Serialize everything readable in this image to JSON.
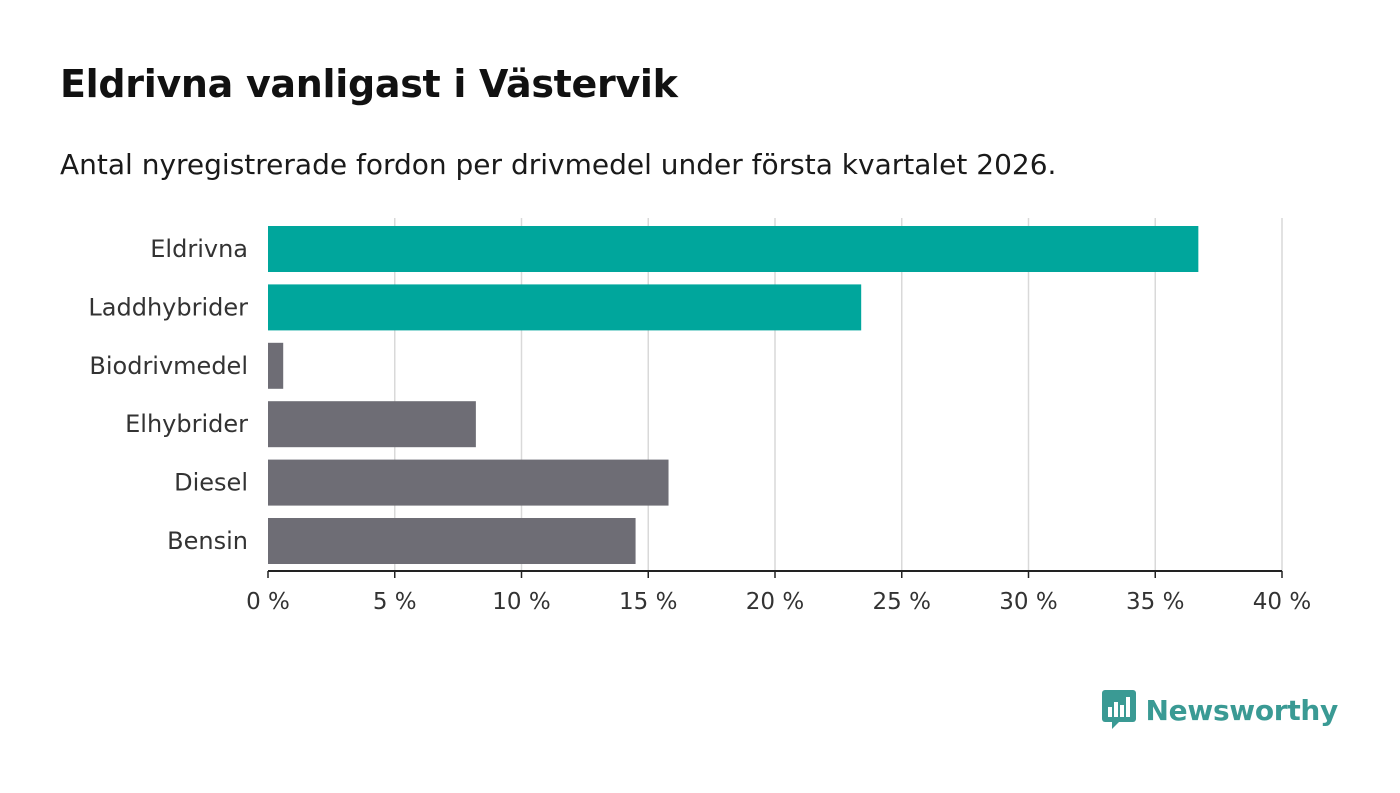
{
  "header": {
    "title": "Eldrivna vanligast i Västervik",
    "subtitle": "Antal nyregistrerade fordon per drivmedel under första kvartalet 2026."
  },
  "chart_data": {
    "type": "bar",
    "orientation": "horizontal",
    "categories": [
      "Eldrivna",
      "Laddhybrider",
      "Biodrivmedel",
      "Elhybrider",
      "Diesel",
      "Bensin"
    ],
    "values": [
      36.7,
      23.4,
      0.6,
      8.2,
      15.8,
      14.5
    ],
    "bar_colors": [
      "#00a69c",
      "#00a69c",
      "#6e6d75",
      "#6e6d75",
      "#6e6d75",
      "#6e6d75"
    ],
    "xlim": [
      0,
      40
    ],
    "xticks": [
      0,
      5,
      10,
      15,
      20,
      25,
      30,
      35,
      40
    ],
    "xtick_labels": [
      "0 %",
      "5 %",
      "10 %",
      "15 %",
      "20 %",
      "25 %",
      "30 %",
      "35 %",
      "40 %"
    ],
    "grid": true,
    "title": "Eldrivna vanligast i Västervik",
    "xlabel": "",
    "ylabel": ""
  },
  "brand": {
    "name": "Newsworthy",
    "color": "#3a9a94",
    "icon": "newsworthy-logo-icon"
  }
}
